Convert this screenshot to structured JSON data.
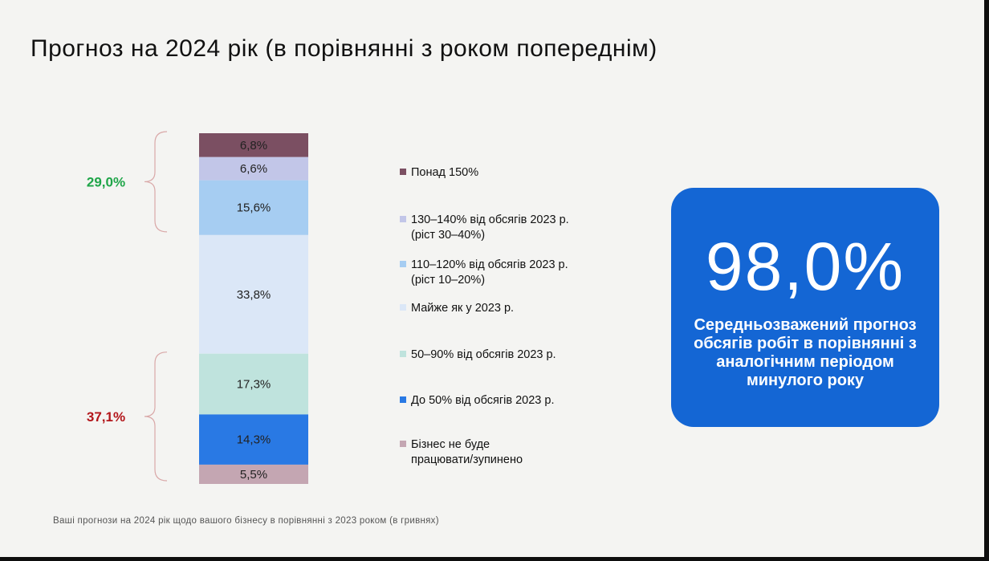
{
  "title": "Прогноз на 2024 рік (в порівнянні з роком попереднім)",
  "chart_data": {
    "type": "bar",
    "subtype": "stacked-100",
    "title": "Прогноз на 2024 рік (в порівнянні з роком попереднім)",
    "categories": [
      ""
    ],
    "series": [
      {
        "name": "Понад 150%",
        "values": [
          6.8
        ],
        "label": "6,8%",
        "color": "#7b4f62"
      },
      {
        "name": "130–140% від обсягів 2023 р. (ріст 30–40%)",
        "values": [
          6.6
        ],
        "label": "6,6%",
        "color": "#c2c6e8"
      },
      {
        "name": "110–120% від обсягів 2023 р. (ріст 10–20%)",
        "values": [
          15.6
        ],
        "label": "15,6%",
        "color": "#a6cdf2"
      },
      {
        "name": "Майже як у 2023 р.",
        "values": [
          33.8
        ],
        "label": "33,8%",
        "color": "#dbe7f7"
      },
      {
        "name": "50–90% від обсягів 2023 р.",
        "values": [
          17.3
        ],
        "label": "17,3%",
        "color": "#bfe3dd"
      },
      {
        "name": "До 50% від обсягів 2023 р.",
        "values": [
          14.3
        ],
        "label": "14,3%",
        "color": "#2979e4"
      },
      {
        "name": "Бізнес не буде працювати/зупинено",
        "values": [
          5.5
        ],
        "label": "5,5%",
        "color": "#c4a6b2"
      }
    ],
    "brackets": [
      {
        "label": "29,0%",
        "color": "#1ea548",
        "from_series": 0,
        "to_series": 2
      },
      {
        "label": "37,1%",
        "color": "#b3161b",
        "from_series": 4,
        "to_series": 6
      }
    ],
    "legend": "right"
  },
  "legend_items": [
    {
      "text": "Понад 150%",
      "color": "#7b4f62"
    },
    {
      "text": "130–140% від обсягів 2023 р.\n(ріст 30–40%)",
      "color": "#c2c6e8"
    },
    {
      "text": "110–120% від обсягів 2023 р.\n(ріст 10–20%)",
      "color": "#a6cdf2"
    },
    {
      "text": "Майже як у 2023 р.",
      "color": "#dbe7f7"
    },
    {
      "text": "50–90% від обсягів 2023 р.",
      "color": "#bfe3dd"
    },
    {
      "text": "До 50% від обсягів 2023 р.",
      "color": "#2979e4"
    },
    {
      "text": "Бізнес не буде\nпрацювати/зупинено",
      "color": "#c4a6b2"
    }
  ],
  "kpi": {
    "value": "98,0%",
    "caption": "Середньозважений прогноз обсягів робіт в порівнянні з аналогічним періодом минулого року",
    "color": "#1466d4"
  },
  "footnote": "Ваші прогнози на 2024 рік щодо вашого бізнесу в порівнянні з 2023 роком (в гривнях)"
}
